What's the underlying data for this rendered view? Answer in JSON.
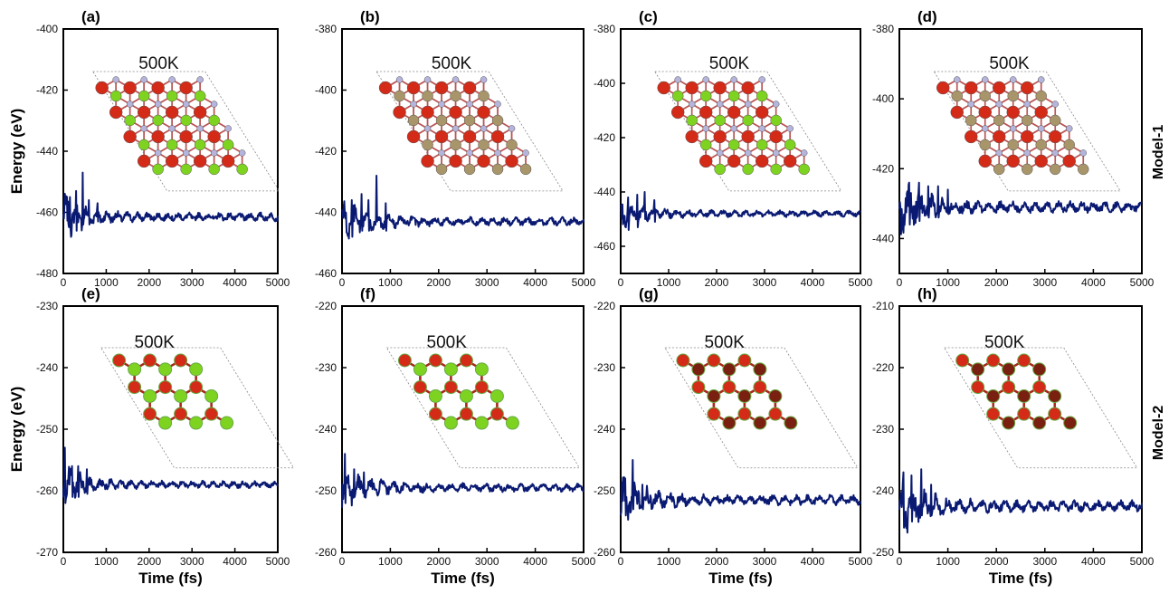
{
  "figure": {
    "row_labels": [
      "Model-1",
      "Model-2"
    ],
    "ylabel": "Energy (eV)",
    "xlabel": "Time (fs)",
    "colors": {
      "line": "#0a1a72",
      "oxygen": "#d42a18",
      "green_atom": "#7ed321",
      "tan_atom": "#a8966a",
      "nitrogen": "#b4b4dc",
      "cell_border": "#888888"
    }
  },
  "chart_data": [
    {
      "type": "line",
      "panel": "(a)",
      "annotation": "500K",
      "inset": "model1-green",
      "xlabel": "",
      "ylabel": "Energy (eV)",
      "xlim": [
        0,
        5000
      ],
      "ylim": [
        -480,
        -400
      ],
      "xticks": [
        0,
        1000,
        2000,
        3000,
        4000,
        5000
      ],
      "yticks": [
        -480,
        -460,
        -440,
        -420,
        -400
      ],
      "mean": -461.5,
      "spikes": [
        [
          150,
          -455,
          -465
        ],
        [
          300,
          -453,
          -466
        ],
        [
          450,
          -447,
          -464
        ],
        [
          600,
          -456,
          -464
        ],
        [
          800,
          -457,
          -463
        ]
      ],
      "noise_end": 1.2
    },
    {
      "type": "line",
      "panel": "(b)",
      "annotation": "500K",
      "inset": "model1-tan",
      "xlabel": "",
      "ylabel": "",
      "xlim": [
        0,
        5000
      ],
      "ylim": [
        -460,
        -380
      ],
      "xticks": [
        0,
        1000,
        2000,
        3000,
        4000,
        5000
      ],
      "yticks": [
        -460,
        -440,
        -420,
        -400,
        -380
      ],
      "mean": -443,
      "spikes": [
        [
          200,
          -436,
          -448
        ],
        [
          400,
          -434,
          -446
        ],
        [
          550,
          -436,
          -446
        ],
        [
          720,
          -428,
          -443
        ],
        [
          900,
          -437,
          -446
        ]
      ],
      "noise_end": 1.2
    },
    {
      "type": "line",
      "panel": "(c)",
      "annotation": "500K",
      "inset": "model1-green",
      "xlabel": "",
      "ylabel": "",
      "xlim": [
        0,
        5000
      ],
      "ylim": [
        -470,
        -380
      ],
      "xticks": [
        0,
        1000,
        2000,
        3000,
        4000,
        5000
      ],
      "yticks": [
        -460,
        -440,
        -420,
        -400,
        -380
      ],
      "mean": -448,
      "spikes": [
        [
          150,
          -442,
          -454
        ],
        [
          350,
          -441,
          -453
        ],
        [
          500,
          -440,
          -450
        ],
        [
          700,
          -443,
          -451
        ]
      ],
      "noise_end": 1.0
    },
    {
      "type": "line",
      "panel": "(d)",
      "annotation": "500K",
      "inset": "model1-tan",
      "xlabel": "",
      "ylabel": "",
      "xlim": [
        0,
        5000
      ],
      "ylim": [
        -450,
        -380
      ],
      "xticks": [
        0,
        1000,
        2000,
        3000,
        4000,
        5000
      ],
      "yticks": [
        -440,
        -420,
        -400,
        -380
      ],
      "mean": -431,
      "spikes": [
        [
          200,
          -424,
          -436
        ],
        [
          400,
          -424,
          -435
        ],
        [
          600,
          -425,
          -434
        ],
        [
          800,
          -425,
          -434
        ],
        [
          1000,
          -426,
          -433
        ]
      ],
      "noise_end": 1.4
    },
    {
      "type": "line",
      "panel": "(e)",
      "annotation": "500K",
      "inset": "model2-green",
      "xlabel": "Time (fs)",
      "ylabel": "Energy (eV)",
      "xlim": [
        0,
        5000
      ],
      "ylim": [
        -270,
        -230
      ],
      "xticks": [
        0,
        1000,
        2000,
        3000,
        4000,
        5000
      ],
      "yticks": [
        -270,
        -260,
        -250,
        -240,
        -230
      ],
      "mean": -259,
      "spikes": [
        [
          30,
          -253,
          -262
        ],
        [
          200,
          -256,
          -261
        ],
        [
          350,
          -256,
          -261
        ],
        [
          550,
          -256.5,
          -260.5
        ]
      ],
      "noise_end": 0.5
    },
    {
      "type": "line",
      "panel": "(f)",
      "annotation": "500K",
      "inset": "model2-green",
      "xlabel": "Time (fs)",
      "ylabel": "",
      "xlim": [
        0,
        5000
      ],
      "ylim": [
        -260,
        -220
      ],
      "xticks": [
        0,
        1000,
        2000,
        3000,
        4000,
        5000
      ],
      "yticks": [
        -260,
        -250,
        -240,
        -230,
        -220
      ],
      "mean": -249.5,
      "spikes": [
        [
          60,
          -244,
          -252
        ],
        [
          250,
          -246.5,
          -251
        ],
        [
          450,
          -247,
          -251
        ]
      ],
      "noise_end": 0.6
    },
    {
      "type": "line",
      "panel": "(g)",
      "annotation": "500K",
      "inset": "model2-red",
      "xlabel": "Time (fs)",
      "ylabel": "",
      "xlim": [
        0,
        5000
      ],
      "ylim": [
        -260,
        -220
      ],
      "xticks": [
        0,
        1000,
        2000,
        3000,
        4000,
        5000
      ],
      "yticks": [
        -260,
        -250,
        -240,
        -230,
        -220
      ],
      "mean": -251.5,
      "spikes": [
        [
          100,
          -248,
          -254
        ],
        [
          250,
          -245,
          -253
        ],
        [
          450,
          -249,
          -253
        ]
      ],
      "noise_end": 0.7
    },
    {
      "type": "line",
      "panel": "(h)",
      "annotation": "500K",
      "inset": "model2-red",
      "xlabel": "Time (fs)",
      "ylabel": "",
      "xlim": [
        0,
        5000
      ],
      "ylim": [
        -250,
        -210
      ],
      "xticks": [
        0,
        1000,
        2000,
        3000,
        4000,
        5000
      ],
      "yticks": [
        -250,
        -240,
        -230,
        -220,
        -210
      ],
      "mean": -242.5,
      "spikes": [
        [
          80,
          -237,
          -246
        ],
        [
          250,
          -237.5,
          -245
        ],
        [
          450,
          -236.5,
          -244
        ],
        [
          650,
          -239,
          -244
        ]
      ],
      "noise_end": 0.8
    }
  ]
}
